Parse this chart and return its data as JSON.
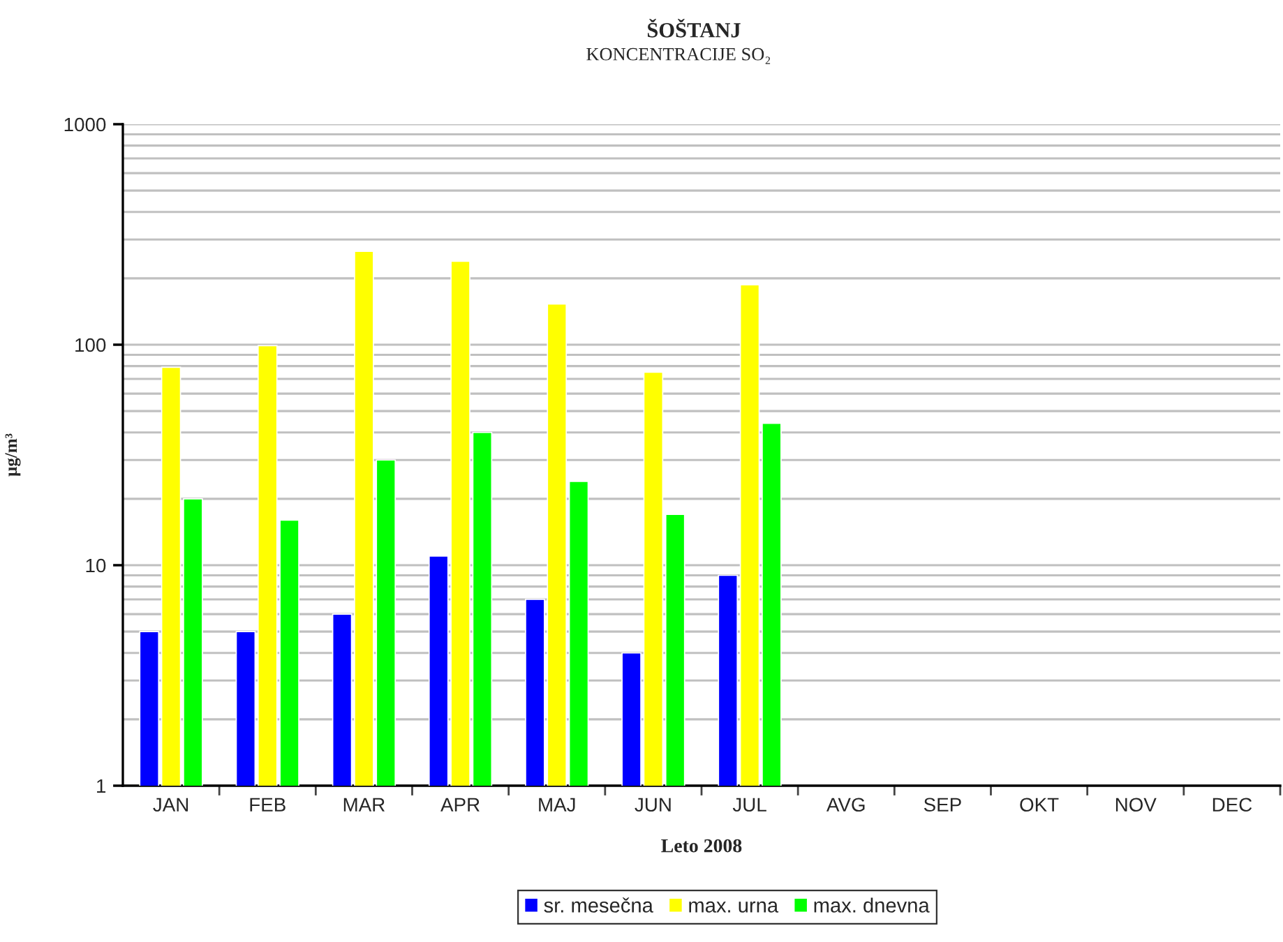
{
  "chart_data": {
    "type": "bar",
    "title": "ŠOŠTANJ",
    "subtitle": "KONCENTRACIJE SO₂",
    "xlabel": "Leto 2008",
    "ylabel": "µg/m³",
    "categories": [
      "JAN",
      "FEB",
      "MAR",
      "APR",
      "MAJ",
      "JUN",
      "JUL",
      "AVG",
      "SEP",
      "OKT",
      "NOV",
      "DEC"
    ],
    "series": [
      {
        "name": "sr. mesečna",
        "color": "#0000ff",
        "values": [
          5,
          5,
          6,
          11,
          7,
          4,
          9,
          null,
          null,
          null,
          null,
          null
        ]
      },
      {
        "name": "max. urna",
        "color": "#ffff00",
        "values": [
          79,
          99,
          265,
          239,
          153,
          75,
          187,
          null,
          null,
          null,
          null,
          null
        ]
      },
      {
        "name": "max. dnevna",
        "color": "#00ff00",
        "values": [
          20,
          16,
          30,
          40,
          24,
          17,
          44,
          null,
          null,
          null,
          null,
          null
        ]
      }
    ],
    "log": true,
    "ylim": [
      1,
      1000
    ],
    "yticks": [
      1,
      10,
      100,
      1000
    ],
    "grid": "y",
    "legend": "bottom"
  }
}
